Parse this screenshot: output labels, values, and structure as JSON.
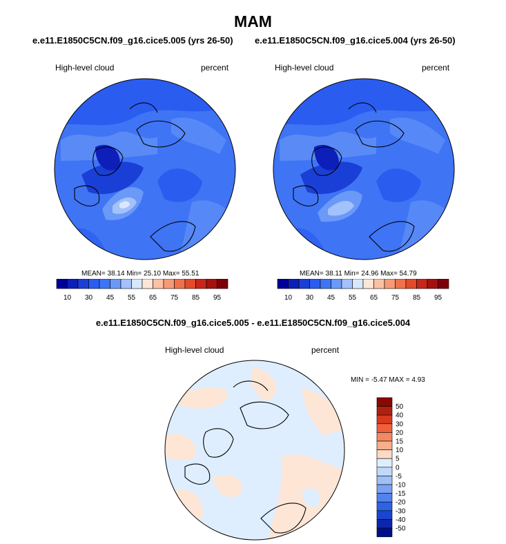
{
  "season": "MAM",
  "panels": [
    {
      "run": "e.e11.E1850C5CN.f09_g16.cice5.005 (yrs 26-50)",
      "variable": "High-level cloud",
      "units": "percent",
      "stats": "MEAN=  38.14  Min=  25.10  Max=  55.51"
    },
    {
      "run": "e.e11.E1850C5CN.f09_g16.cice5.004 (yrs 26-50)",
      "variable": "High-level cloud",
      "units": "percent",
      "stats": "MEAN=  38.11  Min=  24.96  Max=  54.79"
    }
  ],
  "difference": {
    "title": "e.e11.E1850C5CN.f09_g16.cice5.005 - e.e11.E1850C5CN.f09_g16.cice5.004",
    "variable": "High-level cloud",
    "units": "percent",
    "stats": "MIN =  -5.47 MAX =   4.93"
  },
  "colorbar_abs": {
    "colors": [
      "#000099",
      "#0d1fb8",
      "#1a3fd6",
      "#2a5cf0",
      "#3f74f5",
      "#6a99f7",
      "#a3c1fa",
      "#d8e8fc",
      "#fde6d6",
      "#fbc1a3",
      "#f69a75",
      "#f0724c",
      "#e34b2a",
      "#c8261a",
      "#a5120e",
      "#7d0008"
    ],
    "labels": [
      "10",
      "30",
      "45",
      "55",
      "65",
      "75",
      "85",
      "95"
    ]
  },
  "colorbar_diff": {
    "colors": [
      "#8a0800",
      "#b0200f",
      "#d83a1f",
      "#f0603a",
      "#f48860",
      "#f7ae8a",
      "#fcd9c2",
      "#deeeff",
      "#c0d9fb",
      "#9fbff7",
      "#7aa2f3",
      "#5183ee",
      "#2e63e6",
      "#1a45cf",
      "#0d26ad",
      "#00108a"
    ],
    "labels": [
      "50",
      "40",
      "30",
      "20",
      "15",
      "10",
      "5",
      "0",
      "-5",
      "-10",
      "-15",
      "-20",
      "-30",
      "-40",
      "-50"
    ]
  },
  "colors": {
    "map_blue": "#2e63e6",
    "map_deep_blue": "#1a3fd6",
    "map_light_blue": "#a3c1fa",
    "diff_neutral_blue": "#deeeff",
    "diff_peach": "#fde6d6"
  }
}
